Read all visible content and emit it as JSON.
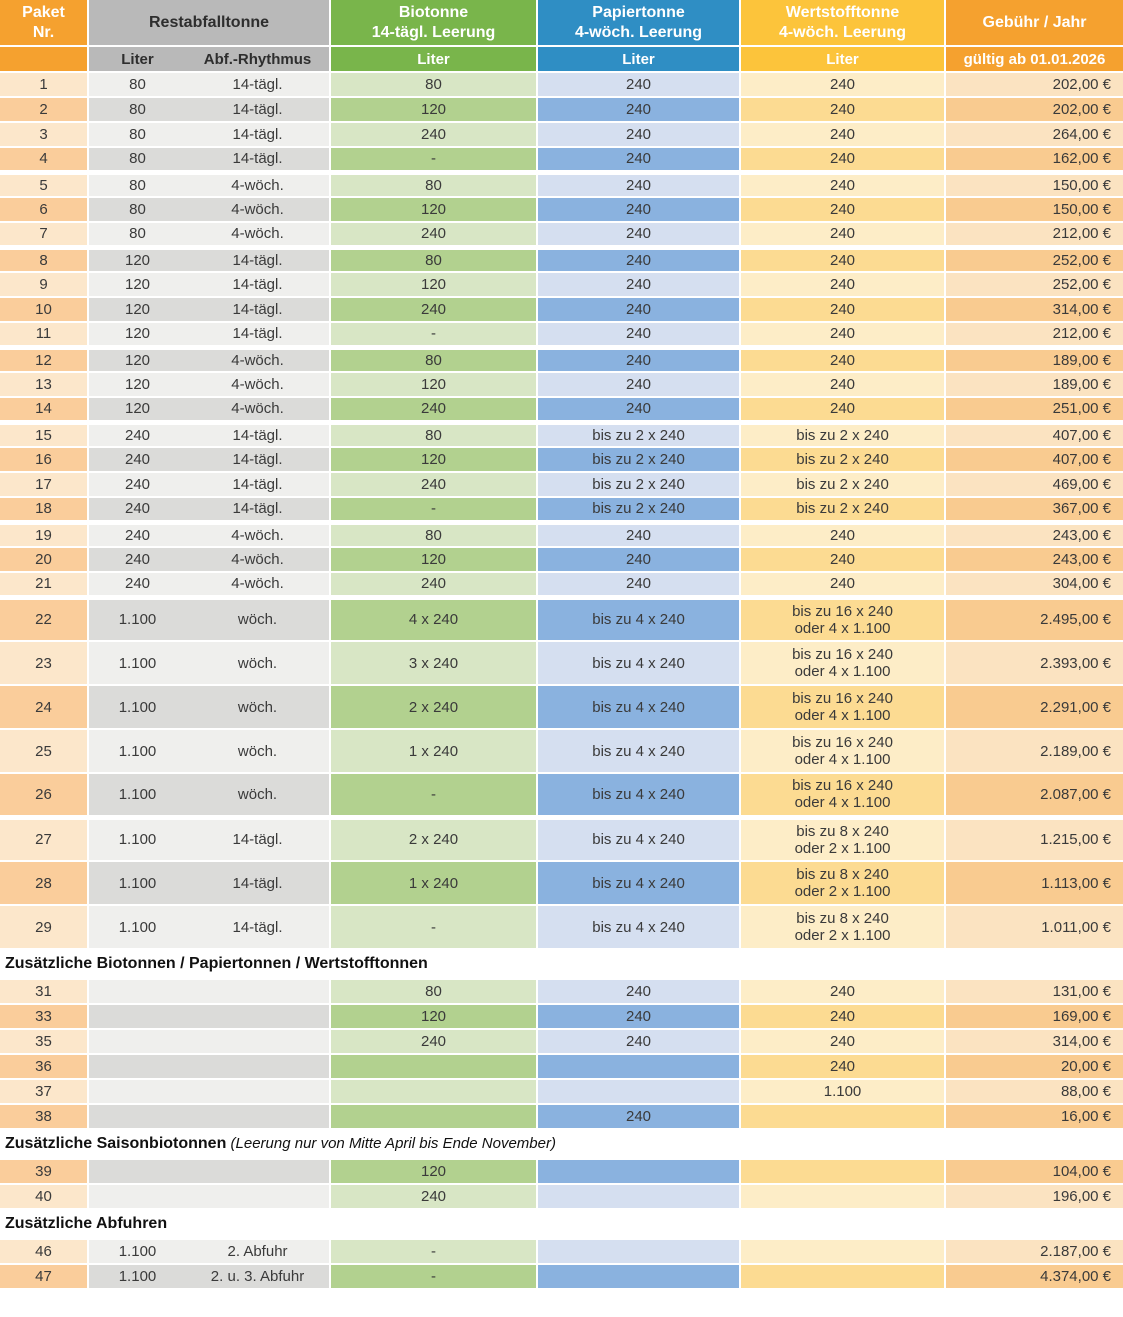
{
  "header": {
    "paket": "Paket\nNr.",
    "rest": "Restabfalltonne",
    "bio": "Biotonne\n14-tägl. Leerung",
    "papier": "Papiertonne\n4-wöch. Leerung",
    "wert": "Wertstofftonne\n4-wöch. Leerung",
    "fee": "Gebühr / Jahr",
    "sub_rest_liter": "Liter",
    "sub_rest_rhythmus": "Abf.-Rhythmus",
    "sub_bio_liter": "Liter",
    "sub_papier_liter": "Liter",
    "sub_wert_liter": "Liter",
    "sub_fee_valid": "gültig ab 01.01.2026"
  },
  "colors": {
    "header_orange": "#F5A12F",
    "header_gray": "#B9B9B9",
    "header_green": "#79B54B",
    "header_blue": "#2F8EC4",
    "header_yellow": "#FCC43B",
    "header_text_dark": "#2E2E2E",
    "text_dark": "#3A3A3A",
    "paket_light": "#FCE7CB",
    "paket_dark": "#FACD9B",
    "rest_light": "#EFEFED",
    "rest_dark": "#DBDBD9",
    "bio_light": "#D8E6C5",
    "bio_dark": "#B2D18F",
    "papier_light": "#D5DFF0",
    "papier_dark": "#8AB2DF",
    "wert_light": "#FDEDC7",
    "wert_dark": "#FCDB92",
    "fee_light": "#FBE3C1",
    "fee_dark": "#F9CB90"
  },
  "body": [
    {
      "type": "row",
      "nr": "1",
      "rest_liter": "80",
      "rest_rhythmus": "14-tägl.",
      "bio": "80",
      "papier": "240",
      "wert": "240",
      "fee": "202,00 €",
      "dark": false,
      "tall": false,
      "gap": false
    },
    {
      "type": "row",
      "nr": "2",
      "rest_liter": "80",
      "rest_rhythmus": "14-tägl.",
      "bio": "120",
      "papier": "240",
      "wert": "240",
      "fee": "202,00 €",
      "dark": true,
      "tall": false,
      "gap": false
    },
    {
      "type": "row",
      "nr": "3",
      "rest_liter": "80",
      "rest_rhythmus": "14-tägl.",
      "bio": "240",
      "papier": "240",
      "wert": "240",
      "fee": "264,00 €",
      "dark": false,
      "tall": false,
      "gap": false
    },
    {
      "type": "row",
      "nr": "4",
      "rest_liter": "80",
      "rest_rhythmus": "14-tägl.",
      "bio": "-",
      "papier": "240",
      "wert": "240",
      "fee": "162,00 €",
      "dark": true,
      "tall": false,
      "gap": true
    },
    {
      "type": "row",
      "nr": "5",
      "rest_liter": "80",
      "rest_rhythmus": "4-wöch.",
      "bio": "80",
      "papier": "240",
      "wert": "240",
      "fee": "150,00 €",
      "dark": false,
      "tall": false,
      "gap": false
    },
    {
      "type": "row",
      "nr": "6",
      "rest_liter": "80",
      "rest_rhythmus": "4-wöch.",
      "bio": "120",
      "papier": "240",
      "wert": "240",
      "fee": "150,00 €",
      "dark": true,
      "tall": false,
      "gap": false
    },
    {
      "type": "row",
      "nr": "7",
      "rest_liter": "80",
      "rest_rhythmus": "4-wöch.",
      "bio": "240",
      "papier": "240",
      "wert": "240",
      "fee": "212,00 €",
      "dark": false,
      "tall": false,
      "gap": true
    },
    {
      "type": "row",
      "nr": "8",
      "rest_liter": "120",
      "rest_rhythmus": "14-tägl.",
      "bio": "80",
      "papier": "240",
      "wert": "240",
      "fee": "252,00 €",
      "dark": true,
      "tall": false,
      "gap": false
    },
    {
      "type": "row",
      "nr": "9",
      "rest_liter": "120",
      "rest_rhythmus": "14-tägl.",
      "bio": "120",
      "papier": "240",
      "wert": "240",
      "fee": "252,00 €",
      "dark": false,
      "tall": false,
      "gap": false
    },
    {
      "type": "row",
      "nr": "10",
      "rest_liter": "120",
      "rest_rhythmus": "14-tägl.",
      "bio": "240",
      "papier": "240",
      "wert": "240",
      "fee": "314,00 €",
      "dark": true,
      "tall": false,
      "gap": false
    },
    {
      "type": "row",
      "nr": "11",
      "rest_liter": "120",
      "rest_rhythmus": "14-tägl.",
      "bio": "-",
      "papier": "240",
      "wert": "240",
      "fee": "212,00 €",
      "dark": false,
      "tall": false,
      "gap": true
    },
    {
      "type": "row",
      "nr": "12",
      "rest_liter": "120",
      "rest_rhythmus": "4-wöch.",
      "bio": "80",
      "papier": "240",
      "wert": "240",
      "fee": "189,00 €",
      "dark": true,
      "tall": false,
      "gap": false
    },
    {
      "type": "row",
      "nr": "13",
      "rest_liter": "120",
      "rest_rhythmus": "4-wöch.",
      "bio": "120",
      "papier": "240",
      "wert": "240",
      "fee": "189,00 €",
      "dark": false,
      "tall": false,
      "gap": false
    },
    {
      "type": "row",
      "nr": "14",
      "rest_liter": "120",
      "rest_rhythmus": "4-wöch.",
      "bio": "240",
      "papier": "240",
      "wert": "240",
      "fee": "251,00 €",
      "dark": true,
      "tall": false,
      "gap": true
    },
    {
      "type": "row",
      "nr": "15",
      "rest_liter": "240",
      "rest_rhythmus": "14-tägl.",
      "bio": "80",
      "papier": "bis zu 2 x 240",
      "wert": "bis zu 2 x 240",
      "fee": "407,00 €",
      "dark": false,
      "tall": false,
      "gap": false
    },
    {
      "type": "row",
      "nr": "16",
      "rest_liter": "240",
      "rest_rhythmus": "14-tägl.",
      "bio": "120",
      "papier": "bis zu 2 x 240",
      "wert": "bis zu 2 x 240",
      "fee": "407,00 €",
      "dark": true,
      "tall": false,
      "gap": false
    },
    {
      "type": "row",
      "nr": "17",
      "rest_liter": "240",
      "rest_rhythmus": "14-tägl.",
      "bio": "240",
      "papier": "bis zu 2 x 240",
      "wert": "bis zu 2 x 240",
      "fee": "469,00 €",
      "dark": false,
      "tall": false,
      "gap": false
    },
    {
      "type": "row",
      "nr": "18",
      "rest_liter": "240",
      "rest_rhythmus": "14-tägl.",
      "bio": "-",
      "papier": "bis zu 2 x 240",
      "wert": "bis zu 2 x 240",
      "fee": "367,00 €",
      "dark": true,
      "tall": false,
      "gap": true
    },
    {
      "type": "row",
      "nr": "19",
      "rest_liter": "240",
      "rest_rhythmus": "4-wöch.",
      "bio": "80",
      "papier": "240",
      "wert": "240",
      "fee": "243,00 €",
      "dark": false,
      "tall": false,
      "gap": false
    },
    {
      "type": "row",
      "nr": "20",
      "rest_liter": "240",
      "rest_rhythmus": "4-wöch.",
      "bio": "120",
      "papier": "240",
      "wert": "240",
      "fee": "243,00 €",
      "dark": true,
      "tall": false,
      "gap": false
    },
    {
      "type": "row",
      "nr": "21",
      "rest_liter": "240",
      "rest_rhythmus": "4-wöch.",
      "bio": "240",
      "papier": "240",
      "wert": "240",
      "fee": "304,00 €",
      "dark": false,
      "tall": false,
      "gap": true
    },
    {
      "type": "row",
      "nr": "22",
      "rest_liter": "1.100",
      "rest_rhythmus": "wöch.",
      "bio": "4 x 240",
      "papier": "bis zu 4 x 240",
      "wert": "bis zu 16 x 240\noder 4 x 1.100",
      "fee": "2.495,00 €",
      "dark": true,
      "tall": true,
      "gap": false
    },
    {
      "type": "row",
      "nr": "23",
      "rest_liter": "1.100",
      "rest_rhythmus": "wöch.",
      "bio": "3 x 240",
      "papier": "bis zu 4 x 240",
      "wert": "bis zu 16 x 240\noder 4 x 1.100",
      "fee": "2.393,00 €",
      "dark": false,
      "tall": true,
      "gap": false
    },
    {
      "type": "row",
      "nr": "24",
      "rest_liter": "1.100",
      "rest_rhythmus": "wöch.",
      "bio": "2 x 240",
      "papier": "bis zu 4 x 240",
      "wert": "bis zu 16 x 240\noder 4 x 1.100",
      "fee": "2.291,00 €",
      "dark": true,
      "tall": true,
      "gap": false
    },
    {
      "type": "row",
      "nr": "25",
      "rest_liter": "1.100",
      "rest_rhythmus": "wöch.",
      "bio": "1 x 240",
      "papier": "bis zu 4 x 240",
      "wert": "bis zu 16 x 240\noder 4 x 1.100",
      "fee": "2.189,00 €",
      "dark": false,
      "tall": true,
      "gap": false
    },
    {
      "type": "row",
      "nr": "26",
      "rest_liter": "1.100",
      "rest_rhythmus": "wöch.",
      "bio": "-",
      "papier": "bis zu 4 x 240",
      "wert": "bis zu 16 x 240\noder 4 x 1.100",
      "fee": "2.087,00 €",
      "dark": true,
      "tall": true,
      "gap": true
    },
    {
      "type": "row",
      "nr": "27",
      "rest_liter": "1.100",
      "rest_rhythmus": "14-tägl.",
      "bio": "2 x 240",
      "papier": "bis zu 4 x 240",
      "wert": "bis zu 8 x 240\noder 2 x 1.100",
      "fee": "1.215,00 €",
      "dark": false,
      "tall": true,
      "gap": false
    },
    {
      "type": "row",
      "nr": "28",
      "rest_liter": "1.100",
      "rest_rhythmus": "14-tägl.",
      "bio": "1 x 240",
      "papier": "bis zu 4 x 240",
      "wert": "bis zu 8 x 240\noder 2 x 1.100",
      "fee": "1.113,00 €",
      "dark": true,
      "tall": true,
      "gap": false
    },
    {
      "type": "row",
      "nr": "29",
      "rest_liter": "1.100",
      "rest_rhythmus": "14-tägl.",
      "bio": "-",
      "papier": "bis zu 4 x 240",
      "wert": "bis zu 8 x 240\noder 2 x 1.100",
      "fee": "1.011,00 €",
      "dark": false,
      "tall": true,
      "gap": false
    },
    {
      "type": "section",
      "text": "Zusätzliche Biotonnen / Papiertonnen / Wertstofftonnen",
      "note": ""
    },
    {
      "type": "row",
      "nr": "31",
      "rest_liter": "",
      "rest_rhythmus": "",
      "bio": "80",
      "papier": "240",
      "wert": "240",
      "fee": "131,00 €",
      "dark": false,
      "tall": false,
      "gap": false
    },
    {
      "type": "row",
      "nr": "33",
      "rest_liter": "",
      "rest_rhythmus": "",
      "bio": "120",
      "papier": "240",
      "wert": "240",
      "fee": "169,00 €",
      "dark": true,
      "tall": false,
      "gap": false
    },
    {
      "type": "row",
      "nr": "35",
      "rest_liter": "",
      "rest_rhythmus": "",
      "bio": "240",
      "papier": "240",
      "wert": "240",
      "fee": "314,00 €",
      "dark": false,
      "tall": false,
      "gap": false
    },
    {
      "type": "row",
      "nr": "36",
      "rest_liter": "",
      "rest_rhythmus": "",
      "bio": "",
      "papier": "",
      "wert": "240",
      "fee": "20,00 €",
      "dark": true,
      "tall": false,
      "gap": false
    },
    {
      "type": "row",
      "nr": "37",
      "rest_liter": "",
      "rest_rhythmus": "",
      "bio": "",
      "papier": "",
      "wert": "1.100",
      "fee": "88,00 €",
      "dark": false,
      "tall": false,
      "gap": false
    },
    {
      "type": "row",
      "nr": "38",
      "rest_liter": "",
      "rest_rhythmus": "",
      "bio": "",
      "papier": "240",
      "wert": "",
      "fee": "16,00 €",
      "dark": true,
      "tall": false,
      "gap": false
    },
    {
      "type": "section",
      "text": "Zusätzliche Saisonbiotonnen",
      "note": "(Leerung nur von Mitte April bis Ende November)"
    },
    {
      "type": "row",
      "nr": "39",
      "rest_liter": "",
      "rest_rhythmus": "",
      "bio": "120",
      "papier": "",
      "wert": "",
      "fee": "104,00 €",
      "dark": true,
      "tall": false,
      "gap": false
    },
    {
      "type": "row",
      "nr": "40",
      "rest_liter": "",
      "rest_rhythmus": "",
      "bio": "240",
      "papier": "",
      "wert": "",
      "fee": "196,00 €",
      "dark": false,
      "tall": false,
      "gap": false
    },
    {
      "type": "section",
      "text": "Zusätzliche Abfuhren",
      "note": ""
    },
    {
      "type": "row",
      "nr": "46",
      "rest_liter": "1.100",
      "rest_rhythmus": "2. Abfuhr",
      "bio": "-",
      "papier": "",
      "wert": "",
      "fee": "2.187,00 €",
      "dark": false,
      "tall": false,
      "gap": false
    },
    {
      "type": "row",
      "nr": "47",
      "rest_liter": "1.100",
      "rest_rhythmus": "2. u. 3. Abfuhr",
      "bio": "-",
      "papier": "",
      "wert": "",
      "fee": "4.374,00 €",
      "dark": true,
      "tall": false,
      "gap": false
    }
  ]
}
